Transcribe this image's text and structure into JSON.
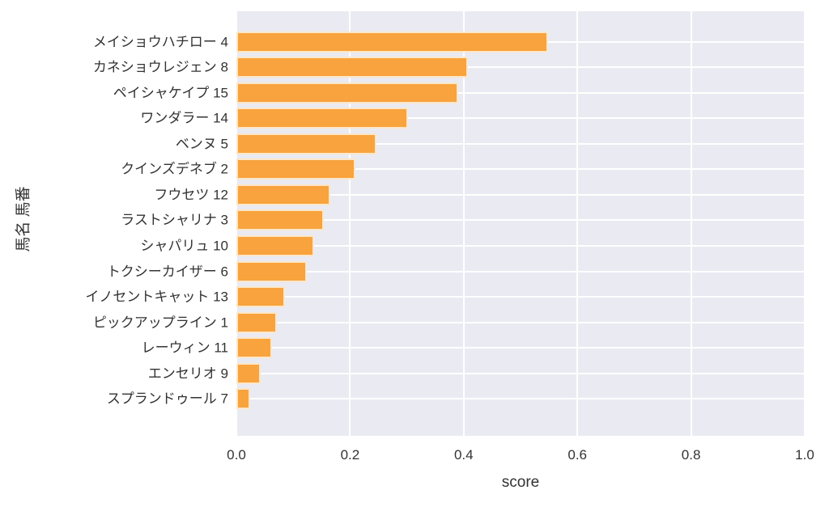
{
  "chart_data": {
    "type": "bar",
    "orientation": "horizontal",
    "title": "",
    "xlabel": "score",
    "ylabel": "馬名 馬番",
    "xlim": [
      0.0,
      1.0
    ],
    "xticks": [
      0.0,
      0.2,
      0.4,
      0.6,
      0.8,
      1.0
    ],
    "xtick_decimals": 1,
    "grid": true,
    "legend": "none",
    "categories": [
      "メイショウハチロー 4",
      "カネショウレジェン 8",
      "ペイシャケイプ 15",
      "ワンダラー 14",
      "ベンヌ 5",
      "クインズデネブ 2",
      "フウセツ 12",
      "ラストシャリナ 3",
      "シャパリュ 10",
      "トクシーカイザー 6",
      "イノセントキャット 13",
      "ピックアップライン 1",
      "レーウィン 11",
      "エンセリオ 9",
      "スプランドゥール 7"
    ],
    "values": [
      0.548,
      0.408,
      0.391,
      0.302,
      0.247,
      0.21,
      0.165,
      0.154,
      0.137,
      0.124,
      0.085,
      0.071,
      0.062,
      0.043,
      0.024
    ],
    "colors": {
      "bar": "#f8a33d",
      "bar_edge": "#fbe7c9",
      "plot_background": "#eaeaf2",
      "gridline": "#ffffff",
      "text": "#333333",
      "figure_background": "#ffffff"
    }
  }
}
